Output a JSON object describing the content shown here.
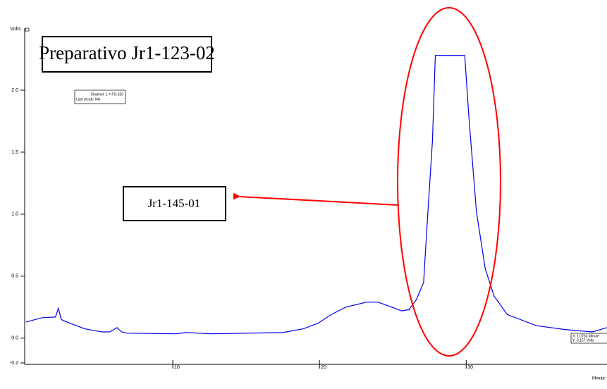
{
  "chart_data": {
    "type": "line",
    "title": "Preparativo Jr1-123-02",
    "annotation": "Jr1-145-01",
    "channel_info": [
      "Channel: 1 = PS-320",
      "Last recalc: NA"
    ],
    "cursor_info": [
      "X:  1.0763 Minute",
      "Y: 0.157 Volts"
    ],
    "y_label": "Volts",
    "x_label": "Minute",
    "color": "#0000ee",
    "x": [
      0,
      1.1,
      2.0,
      2.2,
      2.4,
      3.0,
      4.0,
      5.2,
      5.7,
      6.2,
      6.5,
      6.9,
      10.2,
      10.9,
      12.6,
      17.5,
      18.9,
      19.9,
      20.8,
      21.8,
      23.2,
      24.0,
      24.7,
      25.6,
      26.1,
      26.6,
      27.1,
      27.3,
      27.7,
      27.9,
      29.9,
      30.2,
      30.7,
      31.3,
      31.9,
      32.8,
      34.8,
      36.7,
      38.6,
      39.6
    ],
    "values": [
      0.13,
      0.165,
      0.17,
      0.24,
      0.15,
      0.12,
      0.075,
      0.05,
      0.05,
      0.085,
      0.05,
      0.04,
      0.035,
      0.045,
      0.035,
      0.045,
      0.075,
      0.12,
      0.19,
      0.25,
      0.29,
      0.29,
      0.26,
      0.22,
      0.23,
      0.31,
      0.45,
      0.85,
      1.59,
      2.28,
      2.28,
      1.76,
      1.02,
      0.56,
      0.34,
      0.19,
      0.1,
      0.07,
      0.05,
      0.085
    ],
    "xlim": [
      0,
      39.6
    ],
    "ylim": [
      -0.2,
      2.5
    ],
    "xticks": [
      10,
      20,
      30
    ],
    "yticks": [
      -0.2,
      {
        "value": 0,
        "label": "0.0"
      },
      0.5,
      {
        "value": 1,
        "label": "1.0"
      },
      1.5,
      {
        "value": 2,
        "label": "2.0"
      }
    ]
  }
}
